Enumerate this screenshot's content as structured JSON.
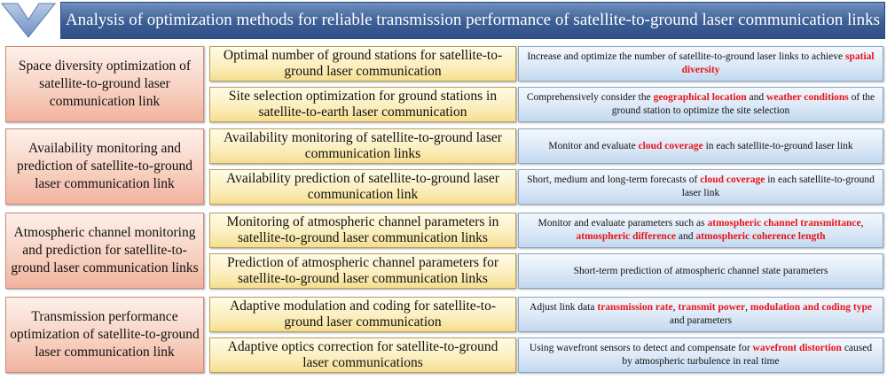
{
  "title": "Analysis of optimization methods for reliable transmission performance of satellite-to-ground laser communication links",
  "groups": [
    {
      "category": "Space diversity optimization of satellite-to-ground laser communication link",
      "methods": [
        {
          "name": "Optimal number of ground stations for satellite-to-ground laser communication",
          "desc": [
            {
              "t": "Increase and optimize the number of satellite-to-ground laser links to achieve ",
              "hl": false
            },
            {
              "t": "spatial diversity",
              "hl": true
            }
          ]
        },
        {
          "name": "Site selection optimization for ground stations in satellite-to-earth laser communication",
          "desc": [
            {
              "t": "Comprehensively consider the ",
              "hl": false
            },
            {
              "t": "geographical location",
              "hl": true
            },
            {
              "t": " and ",
              "hl": false
            },
            {
              "t": "weather conditions",
              "hl": true
            },
            {
              "t": " of the ground station to optimize the site selection",
              "hl": false
            }
          ]
        }
      ]
    },
    {
      "category": "Availability monitoring and prediction of satellite-to-ground laser communication link",
      "methods": [
        {
          "name": "Availability monitoring of satellite-to-ground laser communication links",
          "desc": [
            {
              "t": "Monitor and evaluate ",
              "hl": false
            },
            {
              "t": "cloud coverage",
              "hl": true
            },
            {
              "t": " in each satellite-to-ground laser link",
              "hl": false
            }
          ]
        },
        {
          "name": "Availability prediction of satellite-to-ground laser communication link",
          "desc": [
            {
              "t": "Short, medium and long-term forecasts of ",
              "hl": false
            },
            {
              "t": "cloud coverage",
              "hl": true
            },
            {
              "t": " in each satellite-to-ground laser link",
              "hl": false
            }
          ]
        }
      ]
    },
    {
      "category": "Atmospheric channel monitoring and prediction for satellite-to-ground laser communication links",
      "methods": [
        {
          "name": "Monitoring of atmospheric channel parameters in satellite-to-ground laser communication links",
          "desc": [
            {
              "t": "Monitor and evaluate parameters such as ",
              "hl": false
            },
            {
              "t": "atmospheric channel transmittance",
              "hl": true
            },
            {
              "t": ", ",
              "hl": false
            },
            {
              "t": "atmospheric difference",
              "hl": true
            },
            {
              "t": " and ",
              "hl": false
            },
            {
              "t": "atmospheric coherence length",
              "hl": true
            }
          ]
        },
        {
          "name": "Prediction of atmospheric channel parameters for satellite-to-ground laser communication links",
          "desc": [
            {
              "t": "Short-term prediction of atmospheric channel state parameters",
              "hl": false
            }
          ]
        }
      ]
    },
    {
      "category": "Transmission performance optimization of satellite-to-ground laser communication link",
      "methods": [
        {
          "name": "Adaptive modulation and coding for satellite-to-ground laser communication",
          "desc": [
            {
              "t": "Adjust link data ",
              "hl": false
            },
            {
              "t": "transmission rate",
              "hl": true
            },
            {
              "t": ", ",
              "hl": false
            },
            {
              "t": "transmit power",
              "hl": true
            },
            {
              "t": ", ",
              "hl": false
            },
            {
              "t": "modulation and coding type",
              "hl": true
            },
            {
              "t": " and parameters",
              "hl": false
            }
          ]
        },
        {
          "name": "Adaptive optics correction for satellite-to-ground laser communications",
          "desc": [
            {
              "t": "Using wavefront sensors to detect and compensate for ",
              "hl": false
            },
            {
              "t": "wavefront distortion",
              "hl": true
            },
            {
              "t": " caused by atmospheric turbulence in real time",
              "hl": false
            }
          ]
        }
      ]
    }
  ]
}
